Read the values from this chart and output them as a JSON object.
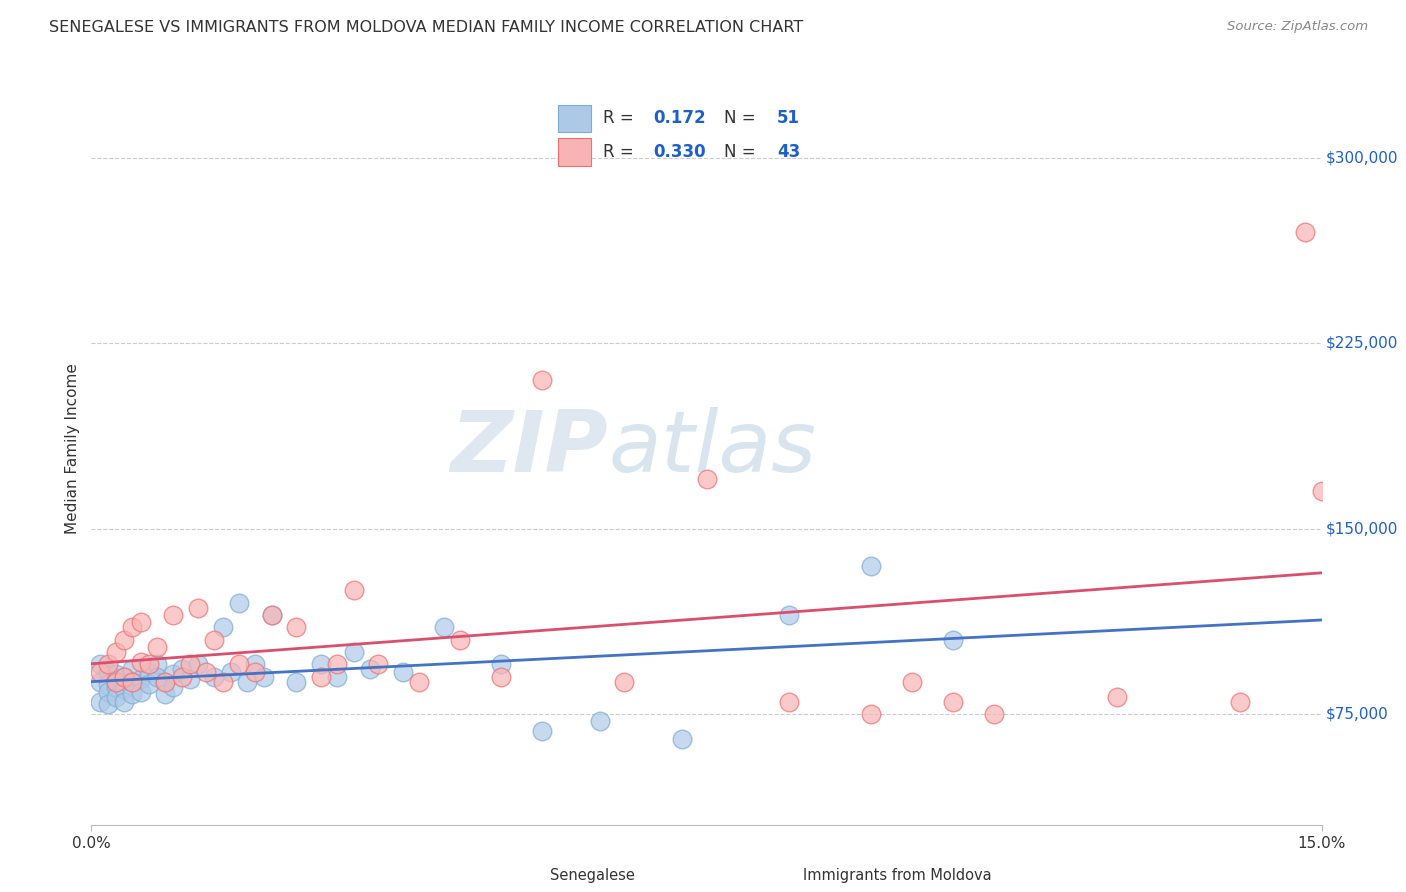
{
  "title": "SENEGALESE VS IMMIGRANTS FROM MOLDOVA MEDIAN FAMILY INCOME CORRELATION CHART",
  "source": "Source: ZipAtlas.com",
  "ylabel": "Median Family Income",
  "ytick_labels": [
    "$75,000",
    "$150,000",
    "$225,000",
    "$300,000"
  ],
  "ytick_values": [
    75000,
    150000,
    225000,
    300000
  ],
  "ymin": 30000,
  "ymax": 335000,
  "xmin": 0.0,
  "xmax": 0.15,
  "watermark_zip": "ZIP",
  "watermark_atlas": "atlas",
  "legend_r1": "0.172",
  "legend_n1": "51",
  "legend_r2": "0.330",
  "legend_n2": "43",
  "series1_label": "Senegalese",
  "series2_label": "Immigrants from Moldova",
  "series1_fill": "#aec9e8",
  "series2_fill": "#f8b4b4",
  "series1_edge": "#7dadd4",
  "series2_edge": "#f07070",
  "series1_line_color": "#4472c4",
  "series2_line_color": "#d94f6e",
  "value_color": "#1f5fcc",
  "label_color": "#333333",
  "background_color": "#ffffff",
  "grid_color": "#cccccc",
  "title_fontsize": 11.5,
  "axis_label_fontsize": 11,
  "tick_fontsize": 11,
  "series1_x": [
    0.001,
    0.001,
    0.001,
    0.002,
    0.002,
    0.002,
    0.002,
    0.003,
    0.003,
    0.003,
    0.004,
    0.004,
    0.004,
    0.005,
    0.005,
    0.005,
    0.006,
    0.006,
    0.007,
    0.007,
    0.008,
    0.008,
    0.009,
    0.009,
    0.01,
    0.01,
    0.011,
    0.012,
    0.013,
    0.015,
    0.016,
    0.017,
    0.018,
    0.019,
    0.02,
    0.021,
    0.022,
    0.025,
    0.028,
    0.03,
    0.032,
    0.034,
    0.038,
    0.043,
    0.05,
    0.055,
    0.062,
    0.072,
    0.085,
    0.095,
    0.105
  ],
  "series1_y": [
    95000,
    88000,
    80000,
    92000,
    87000,
    84000,
    79000,
    91000,
    86000,
    82000,
    90000,
    85000,
    80000,
    93000,
    88000,
    83000,
    89000,
    84000,
    92000,
    87000,
    95000,
    90000,
    88000,
    83000,
    91000,
    86000,
    93000,
    89000,
    95000,
    90000,
    110000,
    92000,
    120000,
    88000,
    95000,
    90000,
    115000,
    88000,
    95000,
    90000,
    100000,
    93000,
    92000,
    110000,
    95000,
    68000,
    72000,
    65000,
    115000,
    135000,
    105000
  ],
  "series2_x": [
    0.001,
    0.002,
    0.003,
    0.003,
    0.004,
    0.004,
    0.005,
    0.005,
    0.006,
    0.006,
    0.007,
    0.008,
    0.009,
    0.01,
    0.011,
    0.012,
    0.013,
    0.014,
    0.015,
    0.016,
    0.018,
    0.02,
    0.022,
    0.025,
    0.028,
    0.03,
    0.032,
    0.035,
    0.04,
    0.045,
    0.05,
    0.055,
    0.065,
    0.075,
    0.085,
    0.095,
    0.1,
    0.105,
    0.11,
    0.125,
    0.14,
    0.148,
    0.15
  ],
  "series2_y": [
    92000,
    95000,
    100000,
    88000,
    105000,
    90000,
    110000,
    88000,
    112000,
    96000,
    95000,
    102000,
    88000,
    115000,
    90000,
    95000,
    118000,
    92000,
    105000,
    88000,
    95000,
    92000,
    115000,
    110000,
    90000,
    95000,
    125000,
    95000,
    88000,
    105000,
    90000,
    210000,
    88000,
    170000,
    80000,
    75000,
    88000,
    80000,
    75000,
    82000,
    80000,
    270000,
    165000
  ]
}
